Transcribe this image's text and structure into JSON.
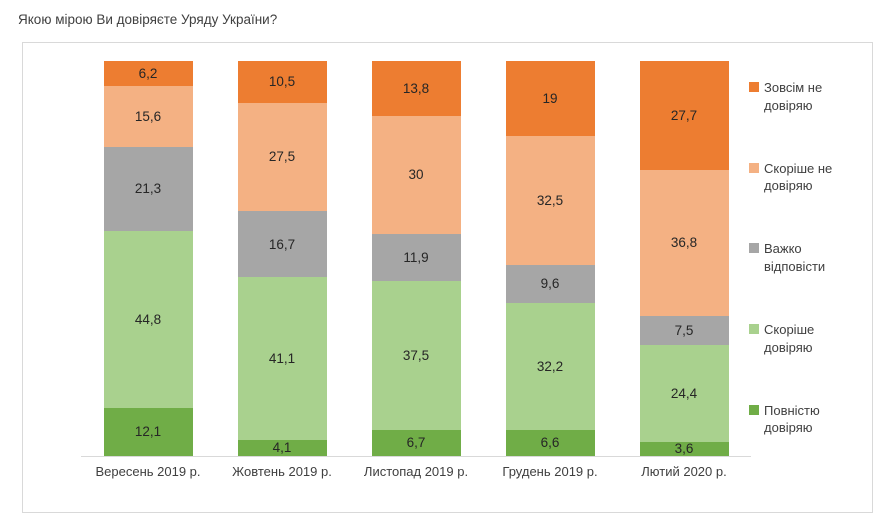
{
  "chart_data": {
    "type": "bar",
    "stacked": true,
    "title": "Якою мірою Ви довіряєте Уряду України?",
    "categories": [
      "Вересень 2019 р.",
      "Жовтень 2019 р.",
      "Листопад 2019 р.",
      "Грудень 2019 р.",
      "Лютий 2020 р."
    ],
    "series": [
      {
        "name": "Повністю довіряю",
        "color": "#70AD47",
        "values": [
          12.1,
          4.1,
          6.7,
          6.6,
          3.6
        ]
      },
      {
        "name": "Скоріше довіряю",
        "color": "#A9D18E",
        "values": [
          44.8,
          41.1,
          37.5,
          32.2,
          24.4
        ]
      },
      {
        "name": "Важко відповісти",
        "color": "#A6A6A6",
        "values": [
          21.3,
          16.7,
          11.9,
          9.6,
          7.5
        ]
      },
      {
        "name": "Скоріше не довіряю",
        "color": "#F4B183",
        "values": [
          15.6,
          27.5,
          30,
          32.5,
          36.8
        ]
      },
      {
        "name": "Зовсім не довіряю",
        "color": "#ED7D31",
        "values": [
          6.2,
          10.5,
          13.8,
          19,
          27.7
        ]
      }
    ],
    "legend": {
      "position": "right",
      "entries": [
        "Зовсім не\nдовіряю",
        "Скоріше не\nдовіряю",
        "Важко\nвідповісти",
        "Скоріше\nдовіряю",
        "Повністю\nдовіряю"
      ]
    },
    "ylim": [
      0,
      100
    ],
    "grid": false,
    "value_decimal_separator": ",",
    "colors": {
      "frame_border": "#d9d9d9",
      "axis_line": "#d9d9d9",
      "title_text": "#404040",
      "data_label_text": "#262626",
      "axis_label_text": "#404040"
    }
  }
}
